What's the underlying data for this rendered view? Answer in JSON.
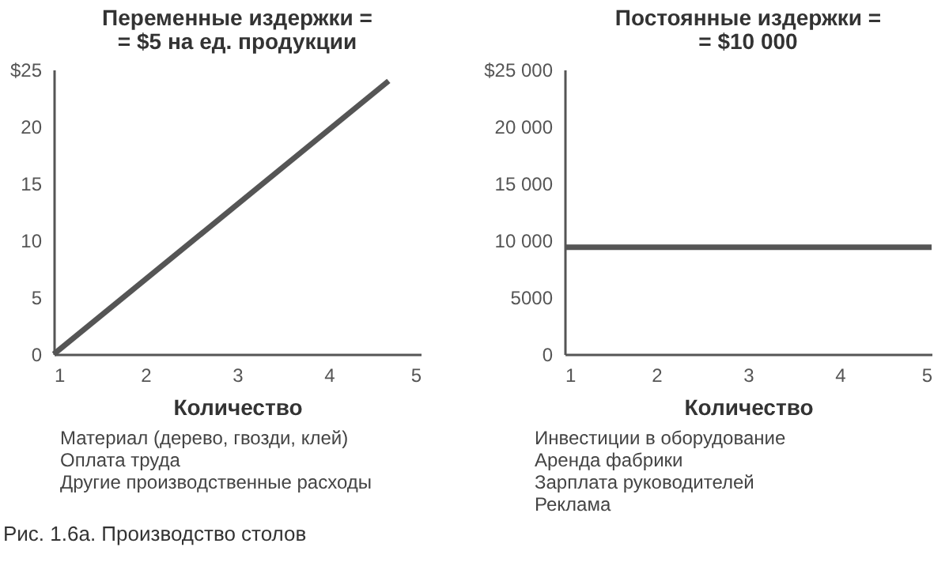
{
  "chart_data": [
    {
      "type": "line",
      "title": "Переменные издержки =\n= $5 на ед. продукции",
      "xlabel": "Количество",
      "x": [
        1,
        4.65
      ],
      "series": [
        {
          "color": "#555555",
          "values": [
            0,
            24
          ]
        }
      ],
      "xlim": [
        1,
        5
      ],
      "xticks": [
        1,
        2,
        3,
        4,
        5
      ],
      "ylim": [
        0,
        25
      ],
      "yticks": [
        0,
        5,
        10,
        15,
        20,
        {
          "value": 25,
          "label": "$25"
        }
      ],
      "grid": false,
      "annotations": [
        "Материал (дерево, гвозди, клей)",
        "Оплата труда",
        "Другие производственные расходы"
      ]
    },
    {
      "type": "line",
      "title": "Постоянные издержки =\n= $10 000",
      "xlabel": "Количество",
      "x": [
        1,
        5
      ],
      "series": [
        {
          "color": "#555555",
          "values": [
            9400,
            9400
          ]
        }
      ],
      "xlim": [
        1,
        5
      ],
      "xticks": [
        1,
        2,
        3,
        4,
        5
      ],
      "ylim": [
        0,
        25000
      ],
      "yticks": [
        0,
        5000,
        {
          "value": 10000,
          "label": "10 000"
        },
        {
          "value": 15000,
          "label": "15 000"
        },
        {
          "value": 20000,
          "label": "20 000"
        },
        {
          "value": 25000,
          "label": "$25 000"
        }
      ],
      "grid": false,
      "annotations": [
        "Инвестиции в оборудование",
        "Аренда фабрики",
        "Зарплата руководителей",
        "Реклама"
      ]
    },
    {
      "type": "other",
      "annotations": [
        "Рис. 1.6а. Производство столов"
      ]
    }
  ]
}
